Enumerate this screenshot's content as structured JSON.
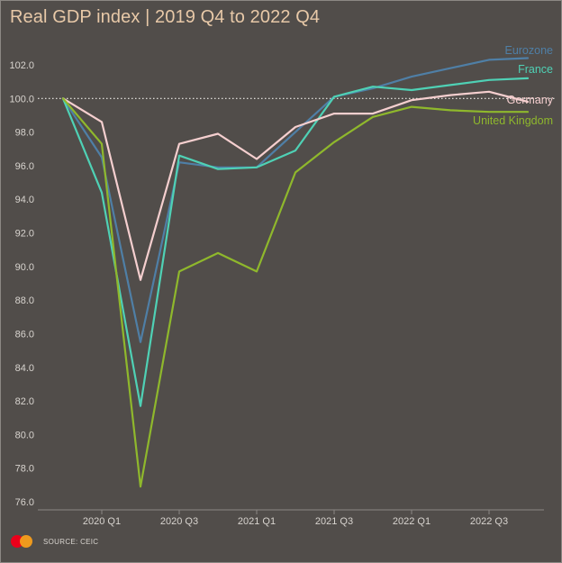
{
  "title": "Real GDP index | 2019 Q4 to 2022 Q4",
  "source": "SOURCE: CEIC",
  "logo_icon": "mastercard-logo-icon",
  "colors": {
    "background": "#514d4a",
    "axis_text": "#d8d4cf",
    "title": "#e8c9a8"
  },
  "chart_data": {
    "type": "line",
    "title": "Real GDP index | 2019 Q4 to 2022 Q4",
    "x": [
      "2019 Q4",
      "2020 Q1",
      "2020 Q2",
      "2020 Q3",
      "2020 Q4",
      "2021 Q1",
      "2021 Q2",
      "2021 Q3",
      "2021 Q4",
      "2022 Q1",
      "2022 Q2",
      "2022 Q3",
      "2022 Q4"
    ],
    "x_tick_labels": [
      "2020 Q1",
      "2020 Q3",
      "2021 Q1",
      "2021 Q3",
      "2022 Q1",
      "2022 Q3"
    ],
    "y_tick_labels": [
      "76.0",
      "78.0",
      "80.0",
      "82.0",
      "84.0",
      "86.0",
      "88.0",
      "90.0",
      "92.0",
      "94.0",
      "96.0",
      "98.0",
      "100.0",
      "102.0"
    ],
    "ylim": [
      75.6,
      103.6
    ],
    "reference_line": 100.0,
    "grid": false,
    "legend": "labels at line ends (right)",
    "series": [
      {
        "name": "Eurozone",
        "color": "#4f7fa6",
        "values": [
          100.0,
          96.5,
          85.5,
          96.2,
          95.9,
          95.9,
          98.0,
          100.1,
          100.6,
          101.3,
          101.8,
          102.3,
          102.4
        ]
      },
      {
        "name": "France",
        "color": "#4fd1b5",
        "values": [
          100.0,
          94.4,
          81.7,
          96.6,
          95.8,
          95.9,
          96.9,
          100.1,
          100.7,
          100.5,
          100.8,
          101.1,
          101.2
        ]
      },
      {
        "name": "Germany",
        "color": "#f5cfcf",
        "values": [
          100.0,
          98.6,
          89.2,
          97.3,
          97.9,
          96.4,
          98.3,
          99.1,
          99.1,
          99.9,
          100.2,
          100.4,
          99.8
        ]
      },
      {
        "name": "United Kingdom",
        "color": "#8fb82c",
        "values": [
          100.0,
          97.3,
          76.9,
          89.7,
          90.8,
          89.7,
          95.6,
          97.4,
          98.9,
          99.5,
          99.3,
          99.2,
          99.2
        ]
      }
    ]
  }
}
